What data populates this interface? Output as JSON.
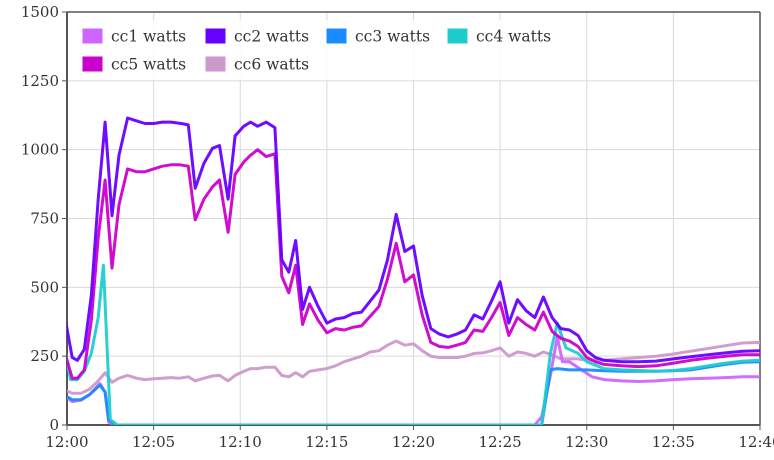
{
  "chart_data": {
    "type": "line",
    "title": "",
    "xlabel": "",
    "ylabel": "",
    "ylim": [
      0,
      1500
    ],
    "yticks": [
      0,
      250,
      500,
      750,
      1000,
      1250,
      1500
    ],
    "xlim": [
      "12:00",
      "12:40"
    ],
    "xticks": [
      "12:00",
      "12:05",
      "12:10",
      "12:15",
      "12:20",
      "12:25",
      "12:30",
      "12:35",
      "12:40"
    ],
    "grid": true,
    "legend_position": "top-left",
    "x_unit": "minutes after 12:00",
    "series": [
      {
        "name": "cc1 watts",
        "color": "#cc66ff",
        "points": [
          [
            -0.2,
            110
          ],
          [
            0.3,
            85
          ],
          [
            0.8,
            90
          ],
          [
            1.3,
            110
          ],
          [
            1.9,
            150
          ],
          [
            2.2,
            120
          ],
          [
            2.4,
            10
          ],
          [
            2.8,
            0
          ],
          [
            4,
            0
          ],
          [
            8,
            0
          ],
          [
            12,
            0
          ],
          [
            16,
            0
          ],
          [
            20,
            0
          ],
          [
            24,
            0
          ],
          [
            27,
            0
          ],
          [
            27.4,
            30
          ],
          [
            27.9,
            180
          ],
          [
            28.3,
            320
          ],
          [
            28.6,
            230
          ],
          [
            29,
            230
          ],
          [
            29.7,
            200
          ],
          [
            30.3,
            175
          ],
          [
            31,
            165
          ],
          [
            32,
            160
          ],
          [
            33,
            158
          ],
          [
            34,
            160
          ],
          [
            35,
            165
          ],
          [
            36,
            168
          ],
          [
            37,
            170
          ],
          [
            38,
            172
          ],
          [
            39,
            175
          ],
          [
            40,
            175
          ]
        ]
      },
      {
        "name": "cc2 watts",
        "color": "#6600ff",
        "points": [
          [
            -0.2,
            420
          ],
          [
            0.3,
            245
          ],
          [
            0.6,
            235
          ],
          [
            1,
            275
          ],
          [
            1.4,
            470
          ],
          [
            1.8,
            820
          ],
          [
            2.2,
            1100
          ],
          [
            2.6,
            760
          ],
          [
            3,
            980
          ],
          [
            3.5,
            1115
          ],
          [
            4,
            1105
          ],
          [
            4.5,
            1095
          ],
          [
            5,
            1095
          ],
          [
            5.5,
            1100
          ],
          [
            6,
            1100
          ],
          [
            6.6,
            1095
          ],
          [
            7,
            1090
          ],
          [
            7.4,
            860
          ],
          [
            7.9,
            950
          ],
          [
            8.4,
            1005
          ],
          [
            8.8,
            1015
          ],
          [
            9.3,
            820
          ],
          [
            9.7,
            1050
          ],
          [
            10.2,
            1085
          ],
          [
            10.6,
            1100
          ],
          [
            11,
            1085
          ],
          [
            11.5,
            1100
          ],
          [
            12,
            1080
          ],
          [
            12.4,
            600
          ],
          [
            12.8,
            555
          ],
          [
            13.2,
            670
          ],
          [
            13.6,
            420
          ],
          [
            14,
            500
          ],
          [
            14.5,
            430
          ],
          [
            15,
            370
          ],
          [
            15.5,
            385
          ],
          [
            16,
            390
          ],
          [
            16.5,
            405
          ],
          [
            17,
            410
          ],
          [
            17.5,
            450
          ],
          [
            18,
            490
          ],
          [
            18.5,
            600
          ],
          [
            19,
            765
          ],
          [
            19.5,
            630
          ],
          [
            20,
            650
          ],
          [
            20.5,
            470
          ],
          [
            21,
            350
          ],
          [
            21.5,
            330
          ],
          [
            22,
            320
          ],
          [
            22.5,
            330
          ],
          [
            23,
            345
          ],
          [
            23.5,
            400
          ],
          [
            24,
            385
          ],
          [
            24.5,
            450
          ],
          [
            25,
            520
          ],
          [
            25.5,
            370
          ],
          [
            26,
            455
          ],
          [
            26.5,
            415
          ],
          [
            27,
            390
          ],
          [
            27.5,
            465
          ],
          [
            28,
            390
          ],
          [
            28.5,
            350
          ],
          [
            29,
            345
          ],
          [
            29.5,
            325
          ],
          [
            30,
            270
          ],
          [
            30.5,
            245
          ],
          [
            31,
            235
          ],
          [
            32,
            230
          ],
          [
            33,
            230
          ],
          [
            34,
            232
          ],
          [
            35,
            240
          ],
          [
            36,
            248
          ],
          [
            37,
            255
          ],
          [
            38,
            262
          ],
          [
            39,
            268
          ],
          [
            40,
            270
          ]
        ]
      },
      {
        "name": "cc3 watts",
        "color": "#1a8cff",
        "points": [
          [
            -0.2,
            110
          ],
          [
            0.3,
            92
          ],
          [
            0.8,
            92
          ],
          [
            1.3,
            110
          ],
          [
            1.9,
            145
          ],
          [
            2.2,
            120
          ],
          [
            2.4,
            20
          ],
          [
            2.8,
            0
          ],
          [
            4,
            0
          ],
          [
            8,
            0
          ],
          [
            12,
            0
          ],
          [
            16,
            0
          ],
          [
            20,
            0
          ],
          [
            24,
            0
          ],
          [
            27,
            0
          ],
          [
            27.4,
            0
          ],
          [
            27.9,
            200
          ],
          [
            28.3,
            205
          ],
          [
            29,
            200
          ],
          [
            30,
            200
          ],
          [
            31,
            197
          ],
          [
            32,
            195
          ],
          [
            33,
            195
          ],
          [
            34,
            195
          ],
          [
            35,
            197
          ],
          [
            36,
            200
          ],
          [
            37,
            210
          ],
          [
            38,
            220
          ],
          [
            39,
            228
          ],
          [
            40,
            230
          ]
        ]
      },
      {
        "name": "cc4 watts",
        "color": "#1fcccc",
        "points": [
          [
            -0.2,
            300
          ],
          [
            0.2,
            165
          ],
          [
            0.6,
            165
          ],
          [
            1,
            195
          ],
          [
            1.4,
            260
          ],
          [
            1.8,
            390
          ],
          [
            2.1,
            580
          ],
          [
            2.5,
            20
          ],
          [
            2.9,
            0
          ],
          [
            4,
            0
          ],
          [
            8,
            0
          ],
          [
            12,
            0
          ],
          [
            16,
            0
          ],
          [
            20,
            0
          ],
          [
            24,
            0
          ],
          [
            27.4,
            0
          ],
          [
            27.9,
            260
          ],
          [
            28.3,
            370
          ],
          [
            28.8,
            280
          ],
          [
            29.5,
            260
          ],
          [
            30,
            230
          ],
          [
            31,
            205
          ],
          [
            32,
            200
          ],
          [
            33,
            198
          ],
          [
            34,
            195
          ],
          [
            35,
            198
          ],
          [
            36,
            205
          ],
          [
            37,
            215
          ],
          [
            38,
            225
          ],
          [
            39,
            232
          ],
          [
            40,
            235
          ]
        ]
      },
      {
        "name": "cc5 watts",
        "color": "#cc00cc",
        "points": [
          [
            -0.2,
            280
          ],
          [
            0.3,
            170
          ],
          [
            0.6,
            170
          ],
          [
            1,
            200
          ],
          [
            1.4,
            380
          ],
          [
            1.8,
            680
          ],
          [
            2.2,
            890
          ],
          [
            2.6,
            570
          ],
          [
            3,
            800
          ],
          [
            3.5,
            930
          ],
          [
            4,
            920
          ],
          [
            4.5,
            920
          ],
          [
            5,
            930
          ],
          [
            5.5,
            940
          ],
          [
            6,
            945
          ],
          [
            6.5,
            945
          ],
          [
            7,
            940
          ],
          [
            7.4,
            745
          ],
          [
            7.9,
            820
          ],
          [
            8.4,
            865
          ],
          [
            8.8,
            890
          ],
          [
            9.3,
            700
          ],
          [
            9.7,
            910
          ],
          [
            10.2,
            955
          ],
          [
            10.6,
            980
          ],
          [
            11,
            1000
          ],
          [
            11.5,
            975
          ],
          [
            12,
            985
          ],
          [
            12.4,
            540
          ],
          [
            12.8,
            480
          ],
          [
            13.2,
            580
          ],
          [
            13.6,
            365
          ],
          [
            14,
            440
          ],
          [
            14.5,
            380
          ],
          [
            15,
            335
          ],
          [
            15.5,
            350
          ],
          [
            16,
            345
          ],
          [
            16.5,
            355
          ],
          [
            17,
            360
          ],
          [
            17.5,
            395
          ],
          [
            18,
            430
          ],
          [
            18.5,
            530
          ],
          [
            19,
            660
          ],
          [
            19.5,
            520
          ],
          [
            20,
            545
          ],
          [
            20.5,
            400
          ],
          [
            21,
            300
          ],
          [
            21.5,
            285
          ],
          [
            22,
            282
          ],
          [
            22.5,
            290
          ],
          [
            23,
            300
          ],
          [
            23.5,
            345
          ],
          [
            24,
            340
          ],
          [
            24.5,
            390
          ],
          [
            25,
            445
          ],
          [
            25.5,
            325
          ],
          [
            26,
            390
          ],
          [
            26.5,
            365
          ],
          [
            27,
            345
          ],
          [
            27.5,
            410
          ],
          [
            28,
            340
          ],
          [
            28.5,
            315
          ],
          [
            29,
            305
          ],
          [
            29.5,
            285
          ],
          [
            30,
            245
          ],
          [
            30.5,
            230
          ],
          [
            31,
            220
          ],
          [
            32,
            215
          ],
          [
            33,
            212
          ],
          [
            34,
            215
          ],
          [
            35,
            225
          ],
          [
            36,
            235
          ],
          [
            37,
            243
          ],
          [
            38,
            250
          ],
          [
            39,
            255
          ],
          [
            40,
            255
          ]
        ]
      },
      {
        "name": "cc6 watts",
        "color": "#cc99cc",
        "points": [
          [
            -0.2,
            130
          ],
          [
            0.3,
            115
          ],
          [
            0.8,
            115
          ],
          [
            1.3,
            130
          ],
          [
            1.8,
            160
          ],
          [
            2.2,
            190
          ],
          [
            2.6,
            155
          ],
          [
            3,
            170
          ],
          [
            3.5,
            180
          ],
          [
            4,
            170
          ],
          [
            4.5,
            165
          ],
          [
            5,
            168
          ],
          [
            5.5,
            170
          ],
          [
            6,
            172
          ],
          [
            6.5,
            170
          ],
          [
            7,
            175
          ],
          [
            7.4,
            160
          ],
          [
            7.9,
            170
          ],
          [
            8.4,
            178
          ],
          [
            8.8,
            180
          ],
          [
            9.3,
            160
          ],
          [
            9.7,
            180
          ],
          [
            10.2,
            195
          ],
          [
            10.6,
            205
          ],
          [
            11,
            205
          ],
          [
            11.5,
            210
          ],
          [
            12,
            210
          ],
          [
            12.4,
            180
          ],
          [
            12.8,
            175
          ],
          [
            13.2,
            190
          ],
          [
            13.6,
            175
          ],
          [
            14,
            195
          ],
          [
            14.5,
            200
          ],
          [
            15,
            205
          ],
          [
            15.5,
            215
          ],
          [
            16,
            230
          ],
          [
            16.5,
            240
          ],
          [
            17,
            250
          ],
          [
            17.5,
            265
          ],
          [
            18,
            270
          ],
          [
            18.5,
            290
          ],
          [
            19,
            305
          ],
          [
            19.5,
            290
          ],
          [
            20,
            295
          ],
          [
            20.5,
            270
          ],
          [
            21,
            250
          ],
          [
            21.5,
            245
          ],
          [
            22,
            245
          ],
          [
            22.5,
            245
          ],
          [
            23,
            250
          ],
          [
            23.5,
            260
          ],
          [
            24,
            262
          ],
          [
            24.5,
            270
          ],
          [
            25,
            280
          ],
          [
            25.5,
            250
          ],
          [
            26,
            265
          ],
          [
            26.5,
            260
          ],
          [
            27,
            250
          ],
          [
            27.5,
            265
          ],
          [
            28,
            255
          ],
          [
            28.5,
            240
          ],
          [
            29,
            240
          ],
          [
            29.5,
            240
          ],
          [
            30,
            235
          ],
          [
            31,
            235
          ],
          [
            32,
            240
          ],
          [
            33,
            245
          ],
          [
            34,
            250
          ],
          [
            35,
            258
          ],
          [
            36,
            268
          ],
          [
            37,
            278
          ],
          [
            38,
            288
          ],
          [
            39,
            298
          ],
          [
            40,
            300
          ]
        ]
      }
    ]
  }
}
